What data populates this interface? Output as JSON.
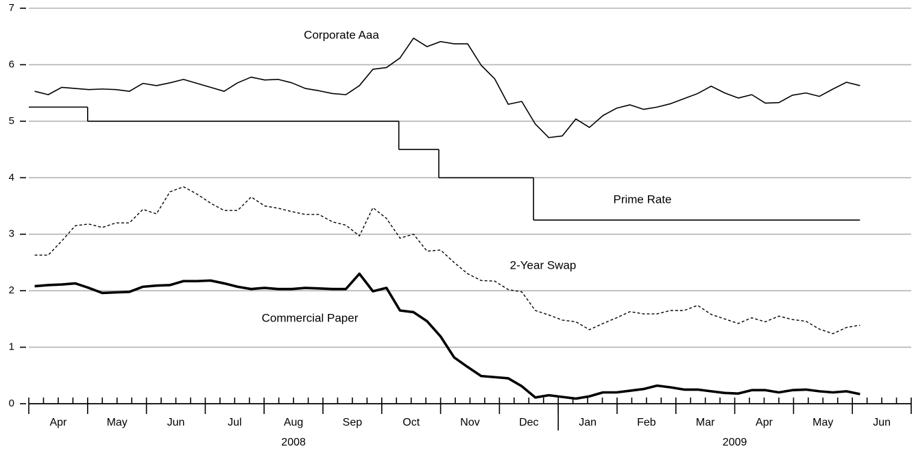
{
  "chart_data": {
    "type": "line",
    "xlim": [
      0,
      15
    ],
    "ylim": [
      0,
      7
    ],
    "yticks": [
      0,
      1,
      2,
      3,
      4,
      5,
      6,
      7
    ],
    "xticks": [
      0,
      0.25,
      0.5,
      0.75,
      1,
      1.25,
      1.5,
      1.75,
      2,
      2.25,
      2.5,
      2.75,
      3,
      3.25,
      3.5,
      3.75,
      4,
      4.25,
      4.5,
      4.75,
      5,
      5.25,
      5.5,
      5.75,
      6,
      6.25,
      6.5,
      6.75,
      7,
      7.25,
      7.5,
      7.75,
      8,
      8.25,
      8.5,
      8.75,
      9,
      9.25,
      9.5,
      9.75,
      10,
      10.25,
      10.5,
      10.75,
      11,
      11.25,
      11.5,
      11.75,
      12,
      12.25,
      12.5,
      12.75,
      13,
      13.25,
      13.5,
      13.75,
      14,
      14.25,
      14.5,
      14.75,
      15
    ],
    "months": [
      "Apr",
      "May",
      "Jun",
      "Jul",
      "Aug",
      "Sep",
      "Oct",
      "Nov",
      "Dec",
      "Jan",
      "Feb",
      "Mar",
      "Apr",
      "May",
      "Jun"
    ],
    "years": [
      {
        "value": 0,
        "label": "2008"
      },
      {
        "value": 9,
        "label": "2009"
      }
    ],
    "grid": true,
    "x": [
      0.1,
      0.33,
      0.56,
      0.79,
      1.02,
      1.25,
      1.48,
      1.71,
      1.94,
      2.17,
      2.4,
      2.63,
      2.86,
      3.09,
      3.32,
      3.55,
      3.78,
      4.01,
      4.24,
      4.47,
      4.7,
      4.93,
      5.16,
      5.39,
      5.62,
      5.85,
      6.08,
      6.31,
      6.54,
      6.77,
      7.0,
      7.23,
      7.46,
      7.69,
      7.92,
      8.15,
      8.38,
      8.61,
      8.84,
      9.07,
      9.3,
      9.53,
      9.76,
      9.99,
      10.22,
      10.45,
      10.68,
      10.91,
      11.14,
      11.37,
      11.6,
      11.83,
      12.06,
      12.29,
      12.52,
      12.75,
      12.98,
      13.21,
      13.44,
      13.67,
      13.9,
      14.13
    ],
    "series": [
      {
        "name": "Corporate Aaa",
        "color": "#000000",
        "values": [
          5.53,
          5.47,
          5.6,
          5.58,
          5.56,
          5.57,
          5.56,
          5.53,
          5.67,
          5.63,
          5.68,
          5.74,
          5.67,
          5.6,
          5.53,
          5.68,
          5.78,
          5.73,
          5.74,
          5.68,
          5.58,
          5.54,
          5.49,
          5.47,
          5.63,
          5.92,
          5.95,
          6.12,
          6.47,
          6.32,
          6.41,
          6.37,
          6.37,
          5.99,
          5.75,
          5.3,
          5.35,
          4.95,
          4.71,
          4.74,
          5.04,
          4.89,
          5.1,
          5.23,
          5.29,
          5.21,
          5.25,
          5.31,
          5.4,
          5.49,
          5.62,
          5.5,
          5.41,
          5.47,
          5.32,
          5.33,
          5.46,
          5.5,
          5.44,
          5.57,
          5.69,
          5.63
        ]
      },
      {
        "name": "Prime Rate",
        "color": "#000000",
        "step": true,
        "x": [
          0,
          1.0,
          6.29,
          6.97,
          8.58,
          14.13
        ],
        "values": [
          5.25,
          5.0,
          4.5,
          4.0,
          3.25,
          3.25
        ]
      },
      {
        "name": "2-Year Swap",
        "color": "#000000",
        "values": [
          2.63,
          2.63,
          2.88,
          3.15,
          3.18,
          3.12,
          3.2,
          3.2,
          3.44,
          3.36,
          3.75,
          3.84,
          3.71,
          3.55,
          3.42,
          3.42,
          3.66,
          3.5,
          3.46,
          3.4,
          3.35,
          3.35,
          3.22,
          3.16,
          2.97,
          3.47,
          3.28,
          2.93,
          3.0,
          2.7,
          2.72,
          2.5,
          2.3,
          2.18,
          2.17,
          2.02,
          1.98,
          1.65,
          1.57,
          1.48,
          1.45,
          1.31,
          1.42,
          1.52,
          1.63,
          1.59,
          1.59,
          1.65,
          1.65,
          1.74,
          1.58,
          1.5,
          1.42,
          1.52,
          1.45,
          1.55,
          1.49,
          1.46,
          1.32,
          1.24,
          1.35,
          1.39
        ]
      },
      {
        "name": "Commercial Paper",
        "color": "#000000",
        "values": [
          2.08,
          2.1,
          2.11,
          2.13,
          2.05,
          1.96,
          1.97,
          1.98,
          2.07,
          2.09,
          2.1,
          2.17,
          2.17,
          2.18,
          2.13,
          2.07,
          2.03,
          2.05,
          2.03,
          2.03,
          2.05,
          2.04,
          2.03,
          2.03,
          2.3,
          1.99,
          2.05,
          1.65,
          1.62,
          1.46,
          1.19,
          0.82,
          0.65,
          0.49,
          0.47,
          0.45,
          0.31,
          0.11,
          0.15,
          0.12,
          0.09,
          0.13,
          0.2,
          0.2,
          0.23,
          0.26,
          0.32,
          0.29,
          0.25,
          0.25,
          0.22,
          0.19,
          0.18,
          0.24,
          0.24,
          0.2,
          0.24,
          0.25,
          0.22,
          0.2,
          0.22,
          0.17
        ]
      }
    ]
  }
}
